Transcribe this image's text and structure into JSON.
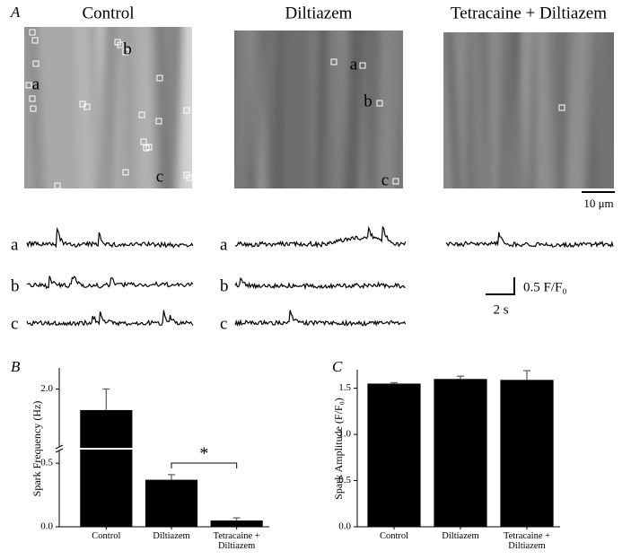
{
  "panel_a": {
    "label": "A",
    "images": [
      {
        "title": "Control",
        "roi_labels": [
          "b",
          "a",
          "c"
        ]
      },
      {
        "title": "Diltiazem",
        "roi_labels": [
          "a",
          "b",
          "c"
        ]
      },
      {
        "title": "Tetracaine + Diltiazem"
      }
    ],
    "traces": [
      {
        "labels": [
          "a",
          "b",
          "c"
        ]
      },
      {
        "labels": [
          "a",
          "b",
          "c"
        ]
      }
    ],
    "scale_bar_length": "10 μm",
    "scale_bar_amplitude": "0.5 F/F₀",
    "scale_bar_time": "2 s"
  },
  "chart_data": [
    {
      "type": "bar",
      "panel_label": "B",
      "y_label": "Spark Frequency (Hz)",
      "categories": [
        "Control",
        "Diltiazem",
        "Tetracaine + Diltiazem"
      ],
      "values": [
        1.8,
        0.37,
        0.05
      ],
      "errors": [
        0.2,
        0.04,
        0.02
      ],
      "color": "#000000",
      "ylim": [
        0,
        0.6
      ],
      "ylim_upper": [
        1.45,
        2.2
      ],
      "axis_break": true,
      "yticks": [
        {
          "value": 0,
          "label": "0.0"
        },
        {
          "value": 0.5,
          "label": "0.5"
        },
        {
          "value": 2,
          "label": "2.0"
        }
      ],
      "annotation": "*"
    },
    {
      "type": "bar",
      "panel_label": "C",
      "y_label": "Spark Amplitude (F/F₀)",
      "categories": [
        "Control",
        "Diltiazem",
        "Tetracaine + Diltiazem"
      ],
      "values": [
        1.55,
        1.6,
        1.59
      ],
      "errors": [
        0.01,
        0.03,
        0.1
      ],
      "color": "#000000",
      "ylim": [
        0,
        1.7
      ],
      "yticks": [
        {
          "value": 0,
          "label": "0.0"
        },
        {
          "value": 0.5,
          "label": "0.5"
        },
        {
          "value": 1,
          "label": "1.0"
        },
        {
          "value": 1.5,
          "label": "1.5"
        }
      ]
    }
  ]
}
